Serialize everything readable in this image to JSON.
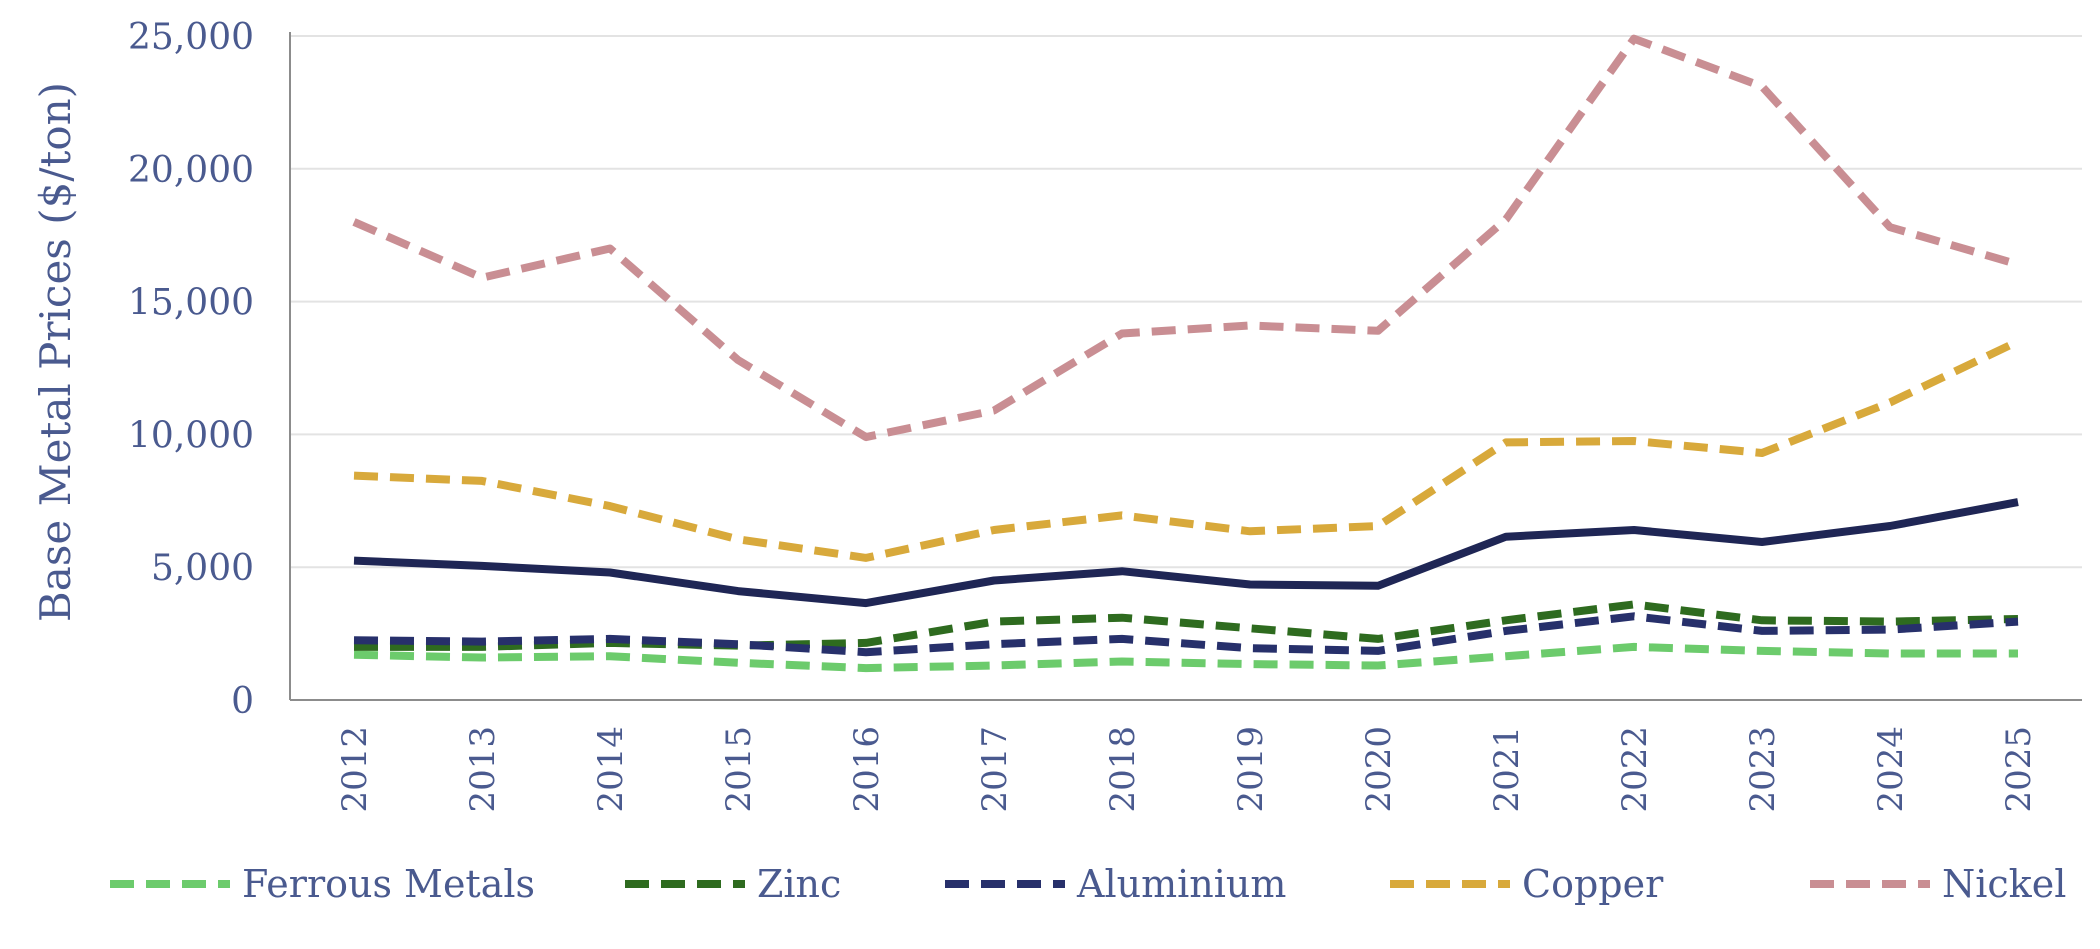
{
  "chart_data": {
    "type": "line",
    "title": "",
    "xlabel": "",
    "ylabel": "Base Metal Prices ($/ton)",
    "categories": [
      "2012",
      "2013",
      "2014",
      "2015",
      "2016",
      "2017",
      "2018",
      "2019",
      "2020",
      "2021",
      "2022",
      "2023",
      "2024",
      "2025"
    ],
    "yticks": [
      "0",
      "5,000",
      "10,000",
      "15,000",
      "20,000",
      "25,000"
    ],
    "ylim": [
      0,
      25000
    ],
    "grid": true,
    "legend_position": "bottom",
    "series": [
      {
        "name": "Ferrous Metals",
        "color": "#6ccb6c",
        "style": "dashed",
        "in_legend": true,
        "values": [
          1700,
          1600,
          1650,
          1400,
          1200,
          1300,
          1450,
          1350,
          1300,
          1650,
          2000,
          1850,
          1750,
          1750
        ]
      },
      {
        "name": "Zinc",
        "color": "#2e6b1f",
        "style": "dashed",
        "in_legend": true,
        "values": [
          2000,
          2000,
          2150,
          2050,
          2150,
          2950,
          3100,
          2700,
          2300,
          3000,
          3600,
          3000,
          2950,
          3050
        ]
      },
      {
        "name": "Aluminium",
        "color": "#27306b",
        "style": "dashed",
        "in_legend": true,
        "values": [
          2250,
          2200,
          2300,
          2100,
          1800,
          2100,
          2300,
          1950,
          1850,
          2600,
          3150,
          2600,
          2650,
          2950
        ]
      },
      {
        "name": "Copper",
        "color": "#d8a93b",
        "style": "dashed",
        "in_legend": true,
        "values": [
          8450,
          8250,
          7300,
          6050,
          5350,
          6400,
          6950,
          6350,
          6550,
          9700,
          9750,
          9300,
          11200,
          13500
        ]
      },
      {
        "name": "Nickel",
        "color": "#c98e93",
        "style": "dashed",
        "in_legend": true,
        "values": [
          18000,
          15900,
          17000,
          12800,
          9900,
          10900,
          13800,
          14100,
          13900,
          18100,
          24900,
          23100,
          17800,
          16400
        ]
      },
      {
        "name": "",
        "color": "#1f2655",
        "style": "solid",
        "in_legend": false,
        "values": [
          5250,
          5050,
          4800,
          4100,
          3650,
          4500,
          4850,
          4350,
          4300,
          6150,
          6400,
          5950,
          6550,
          7450
        ]
      }
    ]
  }
}
